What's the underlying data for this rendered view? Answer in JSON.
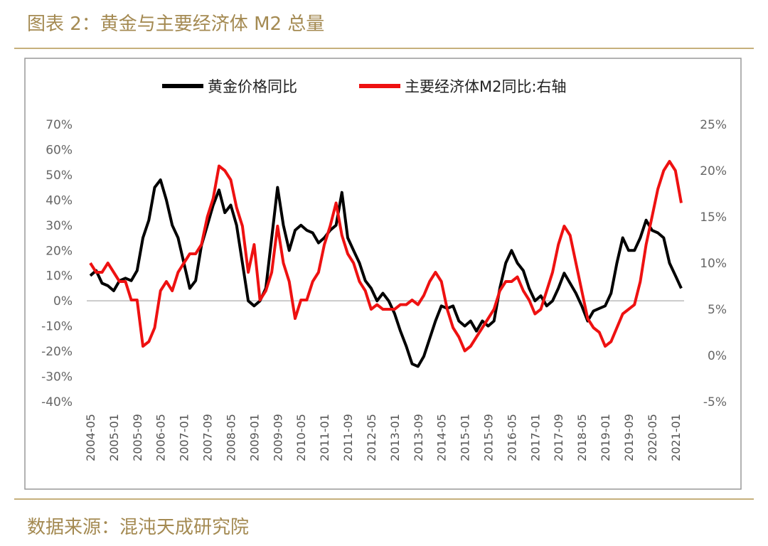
{
  "header": {
    "title": "图表 2：黄金与主要经济体 M2 总量"
  },
  "chart_data": {
    "type": "line",
    "categories": [
      "2004-05",
      null,
      null,
      null,
      "2005-01",
      null,
      null,
      null,
      "2005-09",
      null,
      null,
      null,
      "2006-05",
      null,
      null,
      null,
      "2007-01",
      null,
      null,
      null,
      "2007-09",
      null,
      null,
      null,
      "2008-05",
      null,
      null,
      null,
      "2009-01",
      null,
      null,
      null,
      "2009-09",
      null,
      null,
      null,
      "2010-05",
      null,
      null,
      null,
      "2011-01",
      null,
      null,
      null,
      "2011-09",
      null,
      null,
      null,
      "2012-05",
      null,
      null,
      null,
      "2013-01",
      null,
      null,
      null,
      "2013-09",
      null,
      null,
      null,
      "2014-05",
      null,
      null,
      null,
      "2015-01",
      null,
      null,
      null,
      "2015-09",
      null,
      null,
      null,
      "2016-05",
      null,
      null,
      null,
      "2017-01",
      null,
      null,
      null,
      "2017-09",
      null,
      null,
      null,
      "2018-05",
      null,
      null,
      null,
      "2019-01",
      null,
      null,
      null,
      "2019-09",
      null,
      null,
      null,
      "2020-05",
      null,
      null,
      null,
      "2021-01",
      null
    ],
    "series": [
      {
        "name": "黄金价格同比",
        "color": "#000000",
        "values": [
          10,
          12,
          7,
          6,
          4,
          8,
          9,
          8,
          12,
          25,
          32,
          45,
          48,
          40,
          30,
          25,
          15,
          5,
          8,
          22,
          30,
          38,
          44,
          35,
          38,
          30,
          15,
          0,
          -2,
          0,
          5,
          25,
          45,
          30,
          20,
          28,
          30,
          28,
          27,
          23,
          25,
          28,
          30,
          43,
          25,
          20,
          15,
          8,
          5,
          0,
          3,
          0,
          -5,
          -12,
          -18,
          -25,
          -26,
          -22,
          -15,
          -8,
          -2,
          -3,
          -2,
          -8,
          -10,
          -8,
          -12,
          -8,
          -10,
          -8,
          5,
          15,
          20,
          15,
          12,
          5,
          0,
          2,
          -2,
          0,
          5,
          11,
          7,
          3,
          -2,
          -8,
          -4,
          -3,
          -2,
          3,
          15,
          25,
          20,
          20,
          25,
          32,
          28,
          27,
          25,
          15,
          10,
          5
        ]
      },
      {
        "name": "主要经济体M2同比:右轴",
        "color": "#ee1111",
        "axis": "y2",
        "values": [
          10,
          9,
          9,
          10,
          9,
          8,
          8,
          6,
          6,
          1,
          1.5,
          3,
          7,
          8,
          7,
          9,
          10,
          11,
          11,
          12,
          15,
          17,
          20.5,
          20,
          19,
          16,
          14,
          9,
          12,
          6,
          7,
          9,
          14,
          10,
          8,
          4,
          6,
          6,
          8,
          9,
          12,
          14,
          16.5,
          13,
          11,
          10,
          8,
          7,
          5,
          5.5,
          5,
          5,
          5,
          5.5,
          5.5,
          6,
          5.5,
          6.5,
          8,
          9,
          8,
          5,
          3,
          2,
          0.5,
          1,
          2,
          3,
          4,
          5,
          7,
          8,
          8,
          8.5,
          7,
          6,
          4.5,
          5,
          7,
          9,
          12,
          14,
          13,
          10,
          7,
          4,
          3,
          2.5,
          1,
          1.5,
          3,
          4.5,
          5,
          5.5,
          8,
          12,
          15,
          18,
          20,
          21,
          20,
          16.5
        ]
      }
    ],
    "ylim": [
      -40,
      70
    ],
    "yticks": [
      {
        "value": -40,
        "label": "-40%"
      },
      {
        "value": -30,
        "label": "-30%"
      },
      {
        "value": -20,
        "label": "-20%"
      },
      {
        "value": -10,
        "label": "-10%"
      },
      {
        "value": 0,
        "label": "0%"
      },
      {
        "value": 10,
        "label": "10%"
      },
      {
        "value": 20,
        "label": "20%"
      },
      {
        "value": 30,
        "label": "30%"
      },
      {
        "value": 40,
        "label": "40%"
      },
      {
        "value": 50,
        "label": "50%"
      },
      {
        "value": 60,
        "label": "60%"
      },
      {
        "value": 70,
        "label": "70%"
      }
    ],
    "y2lim": [
      -5,
      25
    ],
    "y2ticks": [
      {
        "value": -5,
        "label": "-5%"
      },
      {
        "value": 0,
        "label": "0%"
      },
      {
        "value": 5,
        "label": "5%"
      },
      {
        "value": 10,
        "label": "10%"
      },
      {
        "value": 15,
        "label": "15%"
      },
      {
        "value": 20,
        "label": "20%"
      },
      {
        "value": 25,
        "label": "25%"
      }
    ],
    "legend": "top"
  },
  "footer": {
    "source": "数据来源：混沌天成研究院"
  }
}
